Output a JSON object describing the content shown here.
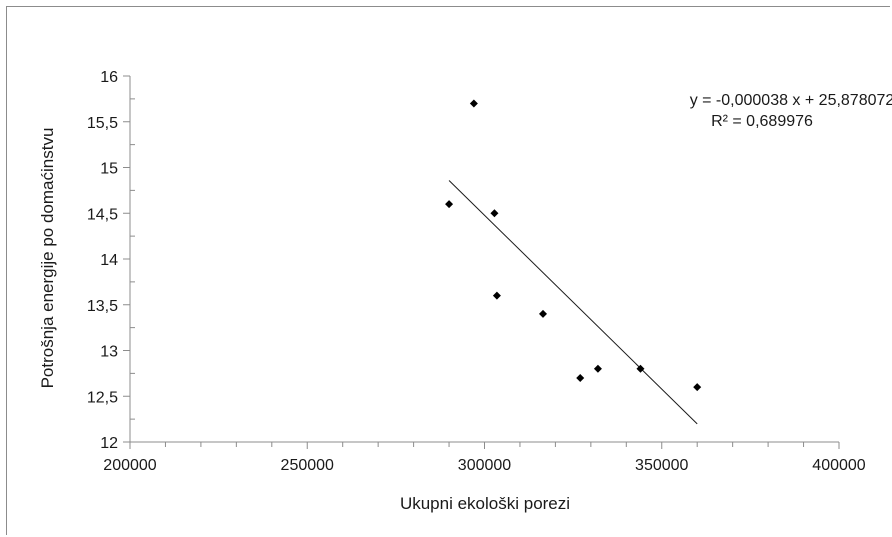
{
  "chart_data": {
    "type": "scatter",
    "xlabel": "Ukupni ekološki porezi",
    "ylabel": "Potrošnja energije  po domaćinstvu",
    "xlim": [
      200000,
      400000
    ],
    "ylim": [
      12,
      16
    ],
    "x_major_ticks": [
      200000,
      250000,
      300000,
      350000,
      400000
    ],
    "x_tick_labels": [
      "200000",
      "250000",
      "300000",
      "350000",
      "400000"
    ],
    "x_minor_step": 10000,
    "y_ticks": [
      12,
      12.5,
      13,
      13.5,
      14,
      14.5,
      15,
      15.5,
      16
    ],
    "y_tick_labels": [
      "12",
      "12,5",
      "13",
      "13,5",
      "14",
      "14,5",
      "15",
      "15,5",
      "16"
    ],
    "grid": false,
    "series": [
      {
        "points": [
          {
            "x": 290000,
            "y": 14.6
          },
          {
            "x": 297000,
            "y": 15.7
          },
          {
            "x": 302800,
            "y": 14.5
          },
          {
            "x": 303500,
            "y": 13.6
          },
          {
            "x": 316500,
            "y": 13.4
          },
          {
            "x": 327000,
            "y": 12.7
          },
          {
            "x": 332000,
            "y": 12.8
          },
          {
            "x": 344000,
            "y": 12.8
          },
          {
            "x": 360000,
            "y": 12.6
          }
        ],
        "color": "#000000"
      }
    ],
    "trendline": {
      "slope": -3.8e-05,
      "intercept": 25.878072,
      "x_range": [
        290000,
        360000
      ],
      "equation_label": "y = -0,000038  x + 25,878072",
      "r2_label": "R² = 0,689976",
      "color": "#1a1a1a"
    }
  }
}
